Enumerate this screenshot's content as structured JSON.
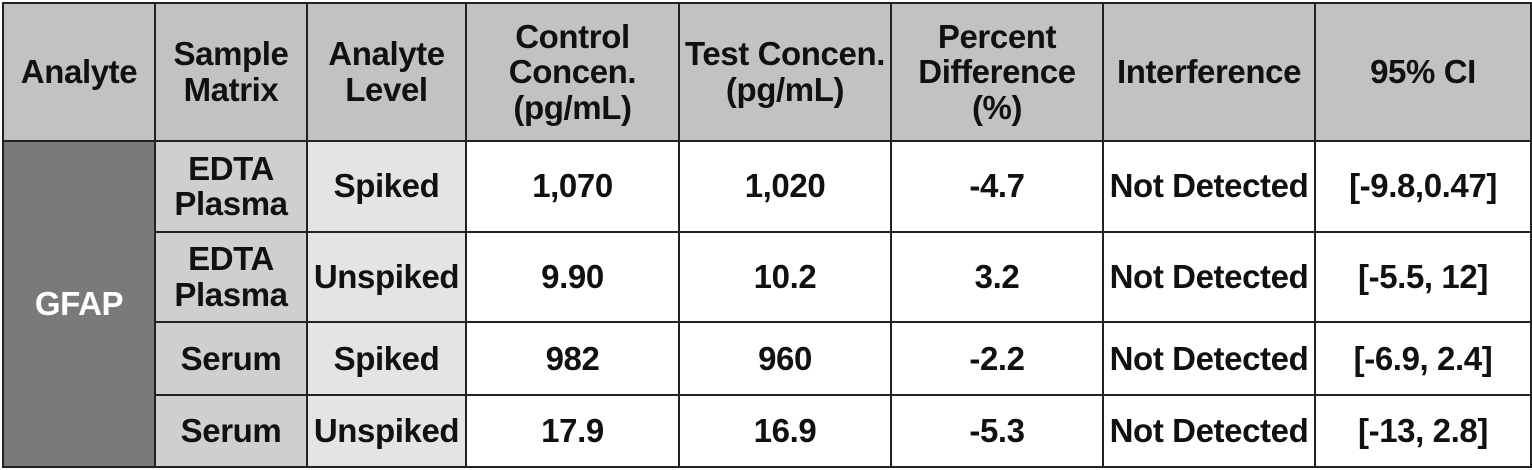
{
  "table": {
    "headers": [
      {
        "lines": [
          "Analyte"
        ]
      },
      {
        "lines": [
          "Sample",
          "Matrix"
        ]
      },
      {
        "lines": [
          "Analyte",
          "Level"
        ]
      },
      {
        "lines": [
          "Control",
          "Concen.",
          "(pg/mL)"
        ]
      },
      {
        "lines": [
          "Test Concen.",
          "(pg/mL)"
        ]
      },
      {
        "lines": [
          "Percent",
          "Difference",
          "(%)"
        ]
      },
      {
        "lines": [
          "Interference"
        ]
      },
      {
        "lines": [
          "95% CI"
        ]
      }
    ],
    "analyte": "GFAP",
    "rows": [
      {
        "matrix": [
          "EDTA",
          "Plasma"
        ],
        "level": "Spiked",
        "control": "1,070",
        "test": "1,020",
        "percent_diff": "-4.7",
        "interference": "Not Detected",
        "ci": "[-9.8,0.47]"
      },
      {
        "matrix": [
          "EDTA",
          "Plasma"
        ],
        "level": "Unspiked",
        "control": "9.90",
        "test": "10.2",
        "percent_diff": "3.2",
        "interference": "Not Detected",
        "ci": "[-5.5, 12]"
      },
      {
        "matrix": [
          "Serum"
        ],
        "level": "Spiked",
        "control": "982",
        "test": "960",
        "percent_diff": "-2.2",
        "interference": "Not Detected",
        "ci": "[-6.9, 2.4]"
      },
      {
        "matrix": [
          "Serum"
        ],
        "level": "Unspiked",
        "control": "17.9",
        "test": "16.9",
        "percent_diff": "-5.3",
        "interference": "Not Detected",
        "ci": "[-13, 2.8]"
      }
    ]
  }
}
